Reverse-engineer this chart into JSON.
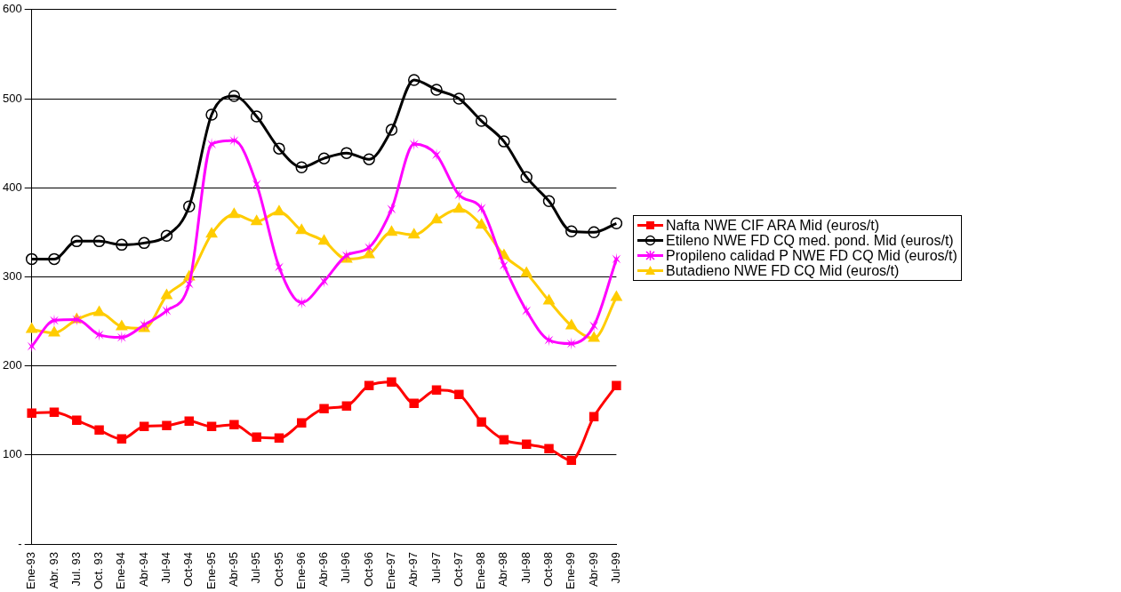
{
  "chart_data": {
    "type": "line",
    "categories": [
      "Ene-93",
      "Abr. 93",
      "Jul. 93",
      "Oct. 93",
      "Ene-94",
      "Abr-94",
      "Jul-94",
      "Oct-94",
      "Ene-95",
      "Abr-95",
      "Jul-95",
      "Oct-95",
      "Ene-96",
      "Abr-96",
      "Jul-96",
      "Oct-96",
      "Ene-97",
      "Abr-97",
      "Jul-97",
      "Oct-97",
      "Ene-98",
      "Abr-98",
      "Jul-98",
      "Oct-98",
      "Ene-99",
      "Abr-99",
      "Jul-99"
    ],
    "series": [
      {
        "name": "Nafta NWE CIF ARA Mid (euros/t)",
        "color": "#ff0000",
        "marker": "square",
        "values": [
          147,
          148,
          139,
          128,
          118,
          132,
          133,
          138,
          132,
          134,
          120,
          119,
          136,
          152,
          155,
          178,
          182,
          158,
          173,
          168,
          137,
          117,
          112,
          107,
          94,
          143,
          178
        ]
      },
      {
        "name": "Etileno NWE FD CQ med. pond. Mid (euros/t)",
        "color": "#000000",
        "marker": "circle",
        "values": [
          320,
          320,
          340,
          340,
          336,
          338,
          346,
          379,
          482,
          503,
          480,
          444,
          423,
          433,
          439,
          432,
          465,
          521,
          510,
          500,
          475,
          452,
          412,
          385,
          351,
          350,
          360
        ]
      },
      {
        "name": "Propileno calidad P NWE FD CQ Mid (euros/t)",
        "color": "#ff00ff",
        "marker": "cross",
        "values": [
          222,
          251,
          252,
          235,
          232,
          246,
          262,
          292,
          449,
          453,
          404,
          311,
          271,
          295,
          324,
          333,
          376,
          449,
          437,
          392,
          377,
          313,
          262,
          229,
          225,
          245,
          320
        ]
      },
      {
        "name": "Butadieno NWE FD CQ Mid (euros/t)",
        "color": "#ffcc00",
        "marker": "triangle",
        "values": [
          241,
          237,
          252,
          260,
          244,
          242,
          279,
          300,
          348,
          370,
          362,
          373,
          352,
          340,
          320,
          325,
          350,
          347,
          364,
          376,
          358,
          324,
          304,
          273,
          245,
          231,
          277
        ]
      }
    ],
    "ylim": [
      0,
      600
    ],
    "yticks": [
      {
        "value": 0,
        "label": "-"
      },
      100,
      200,
      300,
      400,
      500,
      600
    ],
    "grid": "y",
    "legend": "right"
  }
}
